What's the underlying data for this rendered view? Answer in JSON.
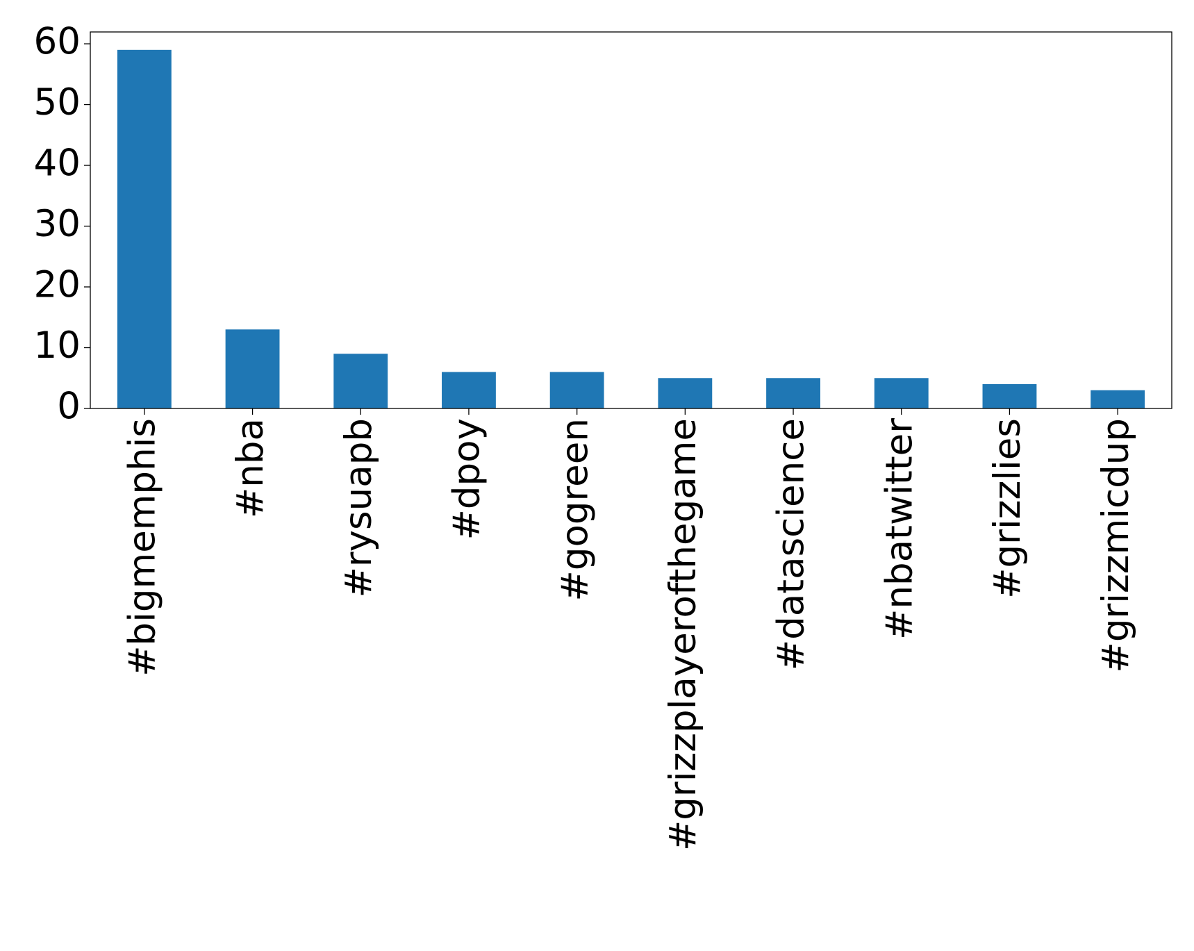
{
  "chart_data": {
    "type": "bar",
    "categories": [
      "#bigmemphis",
      "#nba",
      "#rysuapb",
      "#dpoy",
      "#gogreen",
      "#grizzplayerofthegame",
      "#datascience",
      "#nbatwitter",
      "#grizzlies",
      "#grizzmicdup"
    ],
    "values": [
      59,
      13,
      9,
      6,
      6,
      5,
      5,
      5,
      4,
      3
    ],
    "color": "#1f77b4",
    "ylim": [
      0,
      61.95
    ],
    "yticks": [
      0,
      10,
      20,
      30,
      40,
      50,
      60
    ]
  }
}
